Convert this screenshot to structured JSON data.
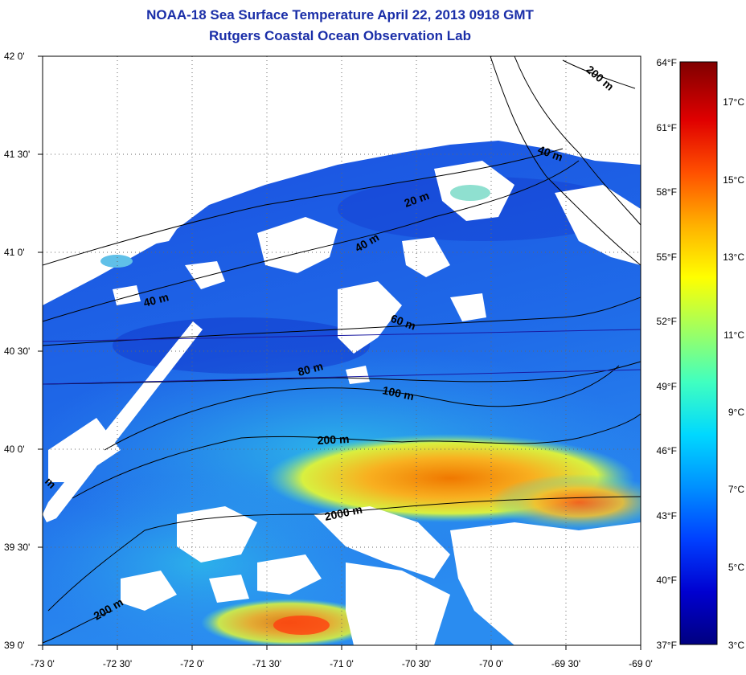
{
  "header": {
    "title": "NOAA-18 Sea Surface Temperature April 22, 2013 0918 GMT",
    "subtitle": "Rutgers Coastal Ocean Observation Lab"
  },
  "map": {
    "lat_range": [
      39.0,
      42.0
    ],
    "lon_range": [
      -73.0,
      -69.0
    ],
    "lat_ticks": [
      "42 0'",
      "41 30'",
      "41 0'",
      "40 30'",
      "40 0'",
      "39 30'",
      "39 0'"
    ],
    "lon_ticks": [
      "-73 0'",
      "-72 30'",
      "-72 0'",
      "-71 30'",
      "-71 0'",
      "-70 30'",
      "-70 0'",
      "-69 30'",
      "-69 0'"
    ],
    "grid": true,
    "contour_labels": [
      "20 m",
      "40 m",
      "40 m",
      "40 m",
      "60 m",
      "80 m",
      "100 m",
      "200 m",
      "200 m",
      "200 m",
      "2000 m",
      "m"
    ],
    "colors": {
      "land": "#ffffff",
      "cloud": "#ffffff",
      "contour": "#000000"
    }
  },
  "colorbar": {
    "fahrenheit_ticks": [
      "64°F",
      "61°F",
      "58°F",
      "55°F",
      "52°F",
      "49°F",
      "46°F",
      "43°F",
      "40°F",
      "37°F"
    ],
    "celsius_ticks": [
      "17°C",
      "15°C",
      "13°C",
      "11°C",
      "9°C",
      "7°C",
      "5°C",
      "3°C"
    ],
    "range_f": [
      37,
      64
    ],
    "range_c": [
      3,
      17.8
    ],
    "colormap": [
      "#000080",
      "#0000d0",
      "#0040ff",
      "#0090ff",
      "#00d8ff",
      "#40ffc0",
      "#a0ff60",
      "#ffff00",
      "#ffb000",
      "#ff5000",
      "#e00000",
      "#800000"
    ]
  }
}
